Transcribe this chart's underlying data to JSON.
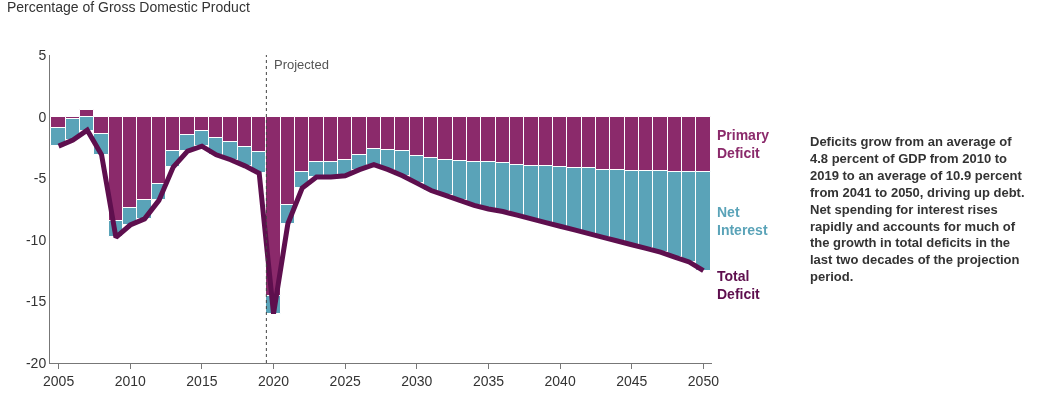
{
  "chart_data": {
    "type": "bar",
    "title": "Percentage of Gross Domestic Product",
    "stacked": true,
    "x": [
      2005,
      2006,
      2007,
      2008,
      2009,
      2010,
      2011,
      2012,
      2013,
      2014,
      2015,
      2016,
      2017,
      2018,
      2019,
      2020,
      2021,
      2022,
      2023,
      2024,
      2025,
      2026,
      2027,
      2028,
      2029,
      2030,
      2031,
      2032,
      2033,
      2034,
      2035,
      2036,
      2037,
      2038,
      2039,
      2040,
      2041,
      2042,
      2043,
      2044,
      2045,
      2046,
      2047,
      2048,
      2049,
      2050
    ],
    "series": [
      {
        "name": "Primary Deficit",
        "color": "#8b2a6b",
        "values": [
          -0.9,
          -0.2,
          0.5,
          -1.4,
          -8.5,
          -7.4,
          -6.8,
          -5.5,
          -2.8,
          -1.5,
          -1.2,
          -1.7,
          -2.1,
          -2.5,
          -2.9,
          -14.6,
          -7.2,
          -4.5,
          -3.7,
          -3.7,
          -3.5,
          -3.1,
          -2.6,
          -2.7,
          -2.8,
          -3.2,
          -3.4,
          -3.5,
          -3.6,
          -3.7,
          -3.7,
          -3.8,
          -3.9,
          -4.0,
          -4.0,
          -4.1,
          -4.2,
          -4.2,
          -4.3,
          -4.3,
          -4.4,
          -4.4,
          -4.4,
          -4.5,
          -4.5,
          -4.5
        ]
      },
      {
        "name": "Net Interest",
        "color": "#5aa3b8",
        "values": [
          -1.5,
          -1.7,
          -1.2,
          -1.7,
          -1.3,
          -1.4,
          -1.5,
          -1.3,
          -1.3,
          -1.3,
          -1.2,
          -1.4,
          -1.4,
          -1.5,
          -1.7,
          -1.4,
          -1.5,
          -1.3,
          -1.2,
          -1.2,
          -1.3,
          -1.2,
          -1.3,
          -1.6,
          -2.0,
          -2.2,
          -2.6,
          -2.9,
          -3.2,
          -3.5,
          -3.8,
          -3.9,
          -4.1,
          -4.3,
          -4.6,
          -4.8,
          -5.0,
          -5.3,
          -5.5,
          -5.8,
          -6.0,
          -6.3,
          -6.6,
          -6.9,
          -7.3,
          -8.0
        ]
      },
      {
        "name": "Total Deficit",
        "type": "line",
        "color": "#5e0f4e",
        "values": [
          -2.4,
          -1.9,
          -1.1,
          -3.1,
          -9.8,
          -8.8,
          -8.3,
          -6.8,
          -4.1,
          -2.8,
          -2.4,
          -3.1,
          -3.5,
          -4.0,
          -4.6,
          -16.0,
          -8.7,
          -5.8,
          -4.9,
          -4.9,
          -4.8,
          -4.3,
          -3.9,
          -4.3,
          -4.8,
          -5.4,
          -6.0,
          -6.4,
          -6.8,
          -7.2,
          -7.5,
          -7.7,
          -8.0,
          -8.3,
          -8.6,
          -8.9,
          -9.2,
          -9.5,
          -9.8,
          -10.1,
          -10.4,
          -10.7,
          -11.0,
          -11.4,
          -11.8,
          -12.5
        ]
      }
    ],
    "xlim": [
      2004.4,
      2050.6
    ],
    "xticks": [
      2005,
      2010,
      2015,
      2020,
      2025,
      2030,
      2035,
      2040,
      2045,
      2050
    ],
    "ylim": [
      -20,
      5
    ],
    "yticks": [
      -20,
      -15,
      -10,
      -5,
      0,
      5
    ],
    "legend": false,
    "ref_lines": [
      {
        "axis": "x",
        "value": 2019.5,
        "label": "Projected",
        "line_style": "dotted",
        "color": "#444444"
      }
    ],
    "annotations": [
      "Deficits grow from an average of 4.8 percent of GDP from 2010 to 2019 to an average of 10.9 percent from 2041 to 2050, driving up debt. Net spending for interest rises rapidly and accounts for much of the growth in total deficits in the last two decades of the projection period."
    ]
  }
}
